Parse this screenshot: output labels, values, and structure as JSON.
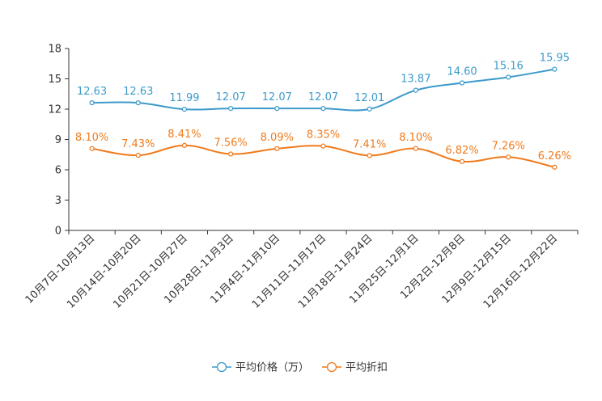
{
  "chart_data": {
    "type": "line",
    "categories": [
      "10月7日-10月13日",
      "10月14日-10月20日",
      "10月21日-10月27日",
      "10月28日-11月3日",
      "11月4日-11月10日",
      "11月11日-11月17日",
      "11月18日-11月24日",
      "11月25日-12月1日",
      "12月2日-12月8日",
      "12月9日-12月15日",
      "12月16日-12月22日"
    ],
    "ylim": [
      0,
      18
    ],
    "yticks": [
      "0",
      "3",
      "6",
      "9",
      "12",
      "15",
      "18"
    ],
    "series": [
      {
        "name": "平均价格（万）",
        "color": "#3c9acb",
        "values": [
          12.63,
          12.63,
          11.99,
          12.07,
          12.07,
          12.07,
          12.01,
          13.87,
          14.6,
          15.16,
          15.95
        ],
        "labels": [
          "12.63",
          "12.63",
          "11.99",
          "12.07",
          "12.07",
          "12.07",
          "12.01",
          "13.87",
          "14.60",
          "15.16",
          "15.95"
        ]
      },
      {
        "name": "平均折扣",
        "color": "#f07b1c",
        "values": [
          8.1,
          7.43,
          8.41,
          7.56,
          8.09,
          8.35,
          7.41,
          8.1,
          6.82,
          7.26,
          6.26
        ],
        "labels": [
          "8.10%",
          "7.43%",
          "8.41%",
          "7.56%",
          "8.09%",
          "8.35%",
          "7.41%",
          "8.10%",
          "6.82%",
          "7.26%",
          "6.26%"
        ]
      }
    ],
    "title": "",
    "xlabel": "",
    "ylabel": "",
    "legend_position": "bottom-center"
  }
}
